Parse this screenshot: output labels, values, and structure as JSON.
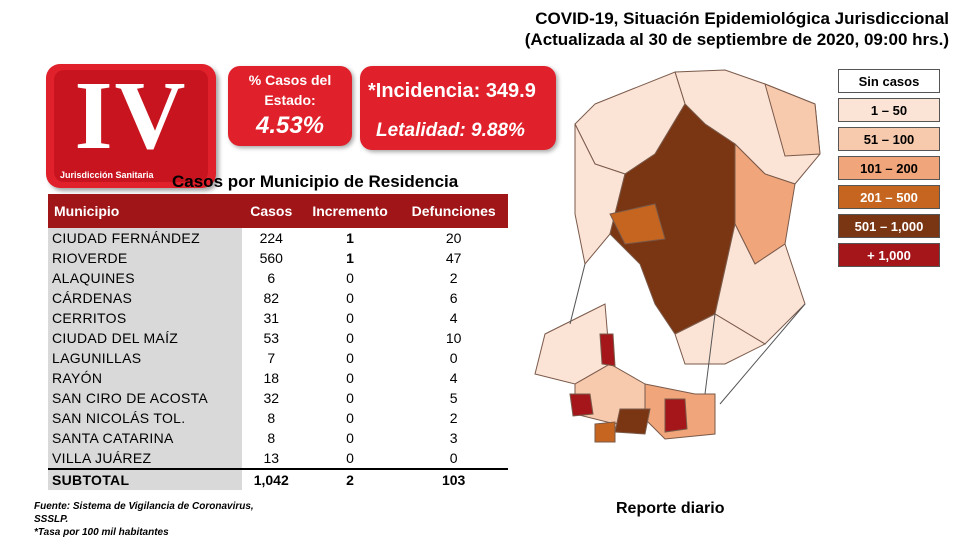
{
  "title": {
    "line1": "COVID-19, Situación Epidemiológica Jurisdiccional",
    "line2": "(Actualizada al 30 de septiembre de 2020, 09:00 hrs.)"
  },
  "logo": {
    "roman": "IV",
    "subtitle": "Jurisdicción Sanitaria"
  },
  "stats": {
    "percent_label": "% Casos del Estado:",
    "percent_value": "4.53%",
    "incidence": "*Incidencia: 349.9",
    "lethality": "Letalidad: 9.88%"
  },
  "table": {
    "title": "Casos por Municipio  de Residencia",
    "headers": [
      "Municipio",
      "Casos",
      "Incremento",
      "Defunciones"
    ],
    "rows": [
      [
        "CIUDAD FERNÁNDEZ",
        "224",
        "1",
        "20"
      ],
      [
        "RIOVERDE",
        "560",
        "1",
        "47"
      ],
      [
        "ALAQUINES",
        "6",
        "0",
        "2"
      ],
      [
        "CÁRDENAS",
        "82",
        "0",
        "6"
      ],
      [
        "CERRITOS",
        "31",
        "0",
        "4"
      ],
      [
        "CIUDAD DEL MAÍZ",
        "53",
        "0",
        "10"
      ],
      [
        "LAGUNILLAS",
        "7",
        "0",
        "0"
      ],
      [
        "RAYÓN",
        "18",
        "0",
        "4"
      ],
      [
        "SAN CIRO DE ACOSTA",
        "32",
        "0",
        "5"
      ],
      [
        "SAN NICOLÁS TOL.",
        "8",
        "0",
        "2"
      ],
      [
        "SANTA CATARINA",
        "8",
        "0",
        "3"
      ],
      [
        "VILLA JUÁREZ",
        "13",
        "0",
        "0"
      ]
    ],
    "subtotal": [
      "SUBTOTAL",
      "1,042",
      "2",
      "103"
    ]
  },
  "legend": [
    {
      "label": "Sin casos",
      "color": "#ffffff",
      "text": "#000000"
    },
    {
      "label": "1 – 50",
      "color": "#fbe3d6",
      "text": "#000000"
    },
    {
      "label": "51 – 100",
      "color": "#f7c9ad",
      "text": "#000000"
    },
    {
      "label": "101 – 200",
      "color": "#f0a57a",
      "text": "#000000"
    },
    {
      "label": "201 – 500",
      "color": "#c5651f",
      "text": "#ffffff"
    },
    {
      "label": "501 – 1,000",
      "color": "#7a3512",
      "text": "#ffffff"
    },
    {
      "label": "+ 1,000",
      "color": "#a4161a",
      "text": "#ffffff"
    }
  ],
  "source": {
    "line1": "Fuente: Sistema de Vigilancia de Coronavirus,",
    "line2": "SSSLP.",
    "line3": "*Tasa por 100 mil habitantes"
  },
  "reporte": "Reporte diario"
}
